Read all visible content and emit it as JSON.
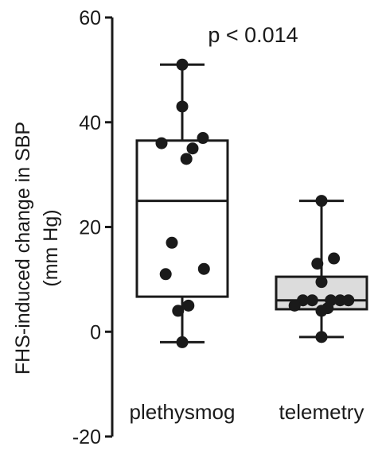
{
  "chart_data": {
    "type": "box",
    "annotation": "p < 0.014",
    "ylabel_line1": "FHS-induced change in SBP",
    "ylabel_line2": "(mm Hg)",
    "ylim": [
      -20,
      60
    ],
    "yticks": [
      -20,
      0,
      20,
      40,
      60
    ],
    "ytick_labels": [
      "-20",
      "0",
      "20",
      "40",
      "60"
    ],
    "categories": [
      "plethysmog",
      "telemetry"
    ],
    "groups": [
      {
        "label": "plethysmog",
        "min": -2,
        "q1": 6.7,
        "median": 25,
        "q3": 36.5,
        "max": 51,
        "box_fill": "#ffffff",
        "points": [
          51,
          43,
          37,
          36,
          35,
          33,
          17,
          12,
          11,
          5,
          4,
          -2
        ]
      },
      {
        "label": "telemetry",
        "min": -1,
        "q1": 4.3,
        "median": 6,
        "q3": 10.5,
        "max": 25,
        "box_fill": "#dcdcdc",
        "points": [
          25,
          14,
          13,
          9.5,
          6,
          6,
          6,
          6,
          6,
          5,
          4.5,
          4,
          -1
        ]
      }
    ]
  }
}
